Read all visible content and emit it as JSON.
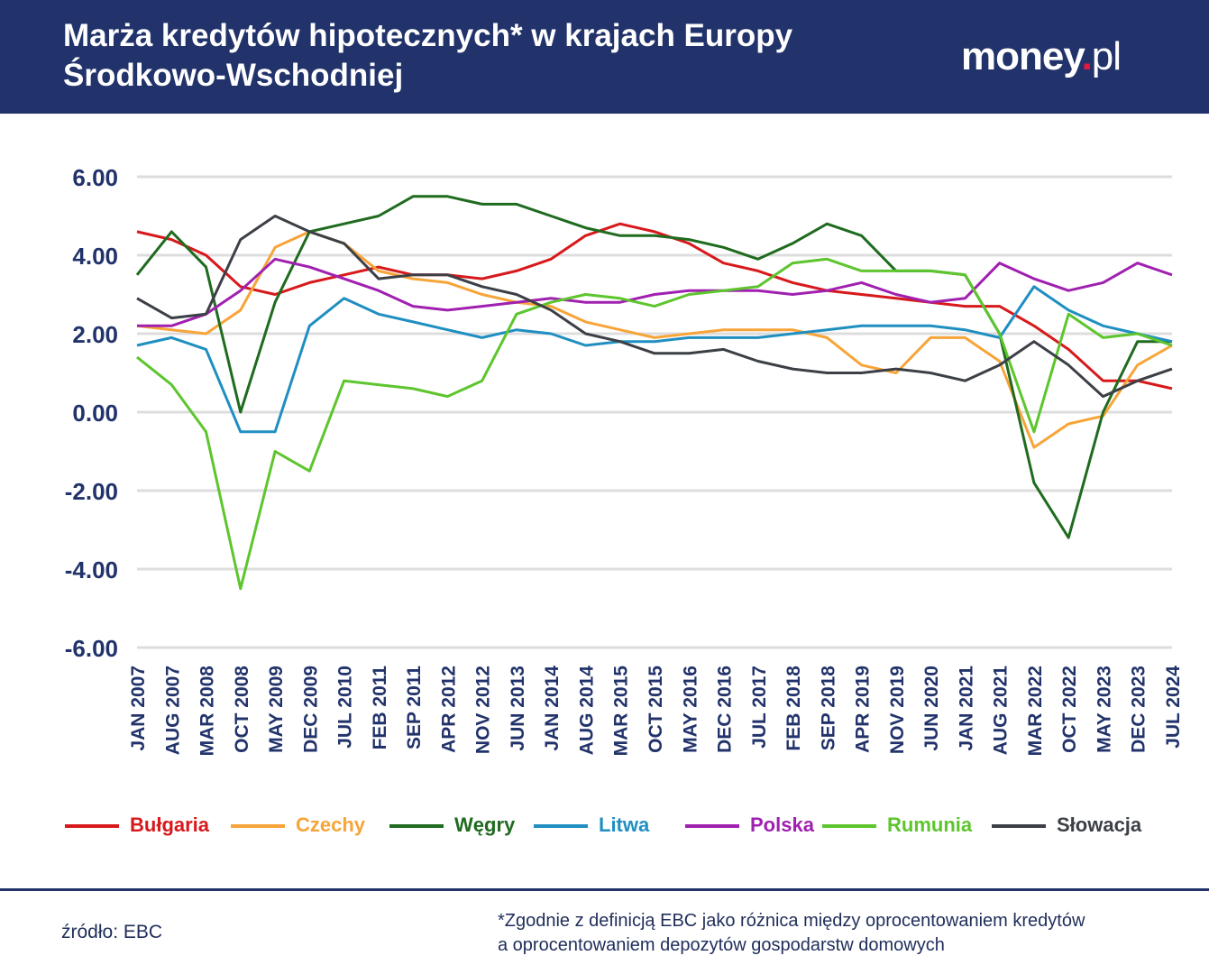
{
  "header": {
    "title": "Marża kredytów hipotecznych* w krajach Europy Środkowo-Wschodniej",
    "logo_main": "money",
    "logo_dot": ".",
    "logo_suffix": "pl"
  },
  "footer": {
    "source": "źródło: EBC",
    "footnote_line1": "*Zgodnie z definicją EBC jako różnica między oprocentowaniem kredytów",
    "footnote_line2": "a oprocentowaniem depozytów gospodarstw domowych"
  },
  "chart_data": {
    "type": "line",
    "title": "Marża kredytów hipotecznych* w krajach Europy Środkowo-Wschodniej",
    "ylim": [
      -6,
      6
    ],
    "yticks": [
      "6.00",
      "4.00",
      "2.00",
      "0.00",
      "-2.00",
      "-4.00",
      "-6.00"
    ],
    "grid": true,
    "legend_position": "bottom",
    "x_tick_labels": [
      "JAN 2007",
      "AUG 2007",
      "MAR 2008",
      "OCT 2008",
      "MAY 2009",
      "DEC 2009",
      "JUL 2010",
      "FEB 2011",
      "SEP 2011",
      "APR 2012",
      "NOV 2012",
      "JUN 2013",
      "JAN 2014",
      "AUG 2014",
      "MAR 2015",
      "OCT 2015",
      "MAY 2016",
      "DEC 2016",
      "JUL 2017",
      "FEB 2018",
      "SEP 2018",
      "APR 2019",
      "NOV 2019",
      "JUN 2020",
      "JAN 2021",
      "AUG 2021",
      "MAR 2022",
      "OCT 2022",
      "MAY 2023",
      "DEC 2023",
      "JUL 2024"
    ],
    "x_dates": [
      "2007-01",
      "2007-08",
      "2008-03",
      "2008-10",
      "2009-05",
      "2009-12",
      "2010-07",
      "2011-02",
      "2011-09",
      "2012-04",
      "2012-11",
      "2013-06",
      "2014-01",
      "2014-08",
      "2015-03",
      "2015-10",
      "2016-05",
      "2016-12",
      "2017-07",
      "2018-02",
      "2018-09",
      "2019-04",
      "2019-11",
      "2020-06",
      "2021-01",
      "2021-08",
      "2022-03",
      "2022-10",
      "2023-05",
      "2023-12",
      "2024-07"
    ],
    "series": [
      {
        "name": "Bułgaria",
        "color": "#d7191c",
        "values": [
          4.6,
          4.4,
          4.0,
          3.2,
          3.0,
          3.3,
          3.5,
          3.7,
          3.5,
          3.5,
          3.4,
          3.6,
          3.9,
          4.5,
          4.8,
          4.6,
          4.3,
          3.8,
          3.6,
          3.3,
          3.1,
          3.0,
          2.9,
          2.8,
          2.7,
          2.7,
          2.2,
          1.6,
          0.8,
          0.8,
          0.6
        ]
      },
      {
        "name": "Czechy",
        "color": "#f7a438",
        "values": [
          2.2,
          2.1,
          2.0,
          2.6,
          4.2,
          4.6,
          4.3,
          3.6,
          3.4,
          3.3,
          3.0,
          2.8,
          2.7,
          2.3,
          2.1,
          1.9,
          2.0,
          2.1,
          2.1,
          2.1,
          1.9,
          1.2,
          1.0,
          1.9,
          1.9,
          1.3,
          -0.9,
          -0.3,
          -0.1,
          1.2,
          1.7
        ]
      },
      {
        "name": "Węgry",
        "color": "#1f6b1f",
        "values": [
          3.5,
          4.6,
          3.7,
          0.0,
          2.8,
          4.6,
          4.8,
          5.0,
          5.5,
          5.5,
          5.3,
          5.3,
          5.0,
          4.7,
          4.5,
          4.5,
          4.4,
          4.2,
          3.9,
          4.3,
          4.8,
          4.5,
          3.6,
          3.6,
          3.5,
          2.0,
          -1.8,
          -3.2,
          0.0,
          1.8,
          1.8
        ]
      },
      {
        "name": "Litwa",
        "color": "#1f8fc1",
        "values": [
          1.7,
          1.9,
          1.6,
          -0.5,
          -0.5,
          2.2,
          2.9,
          2.5,
          2.3,
          2.1,
          1.9,
          2.1,
          2.0,
          1.7,
          1.8,
          1.8,
          1.9,
          1.9,
          1.9,
          2.0,
          2.1,
          2.2,
          2.2,
          2.2,
          2.1,
          1.9,
          3.2,
          2.6,
          2.2,
          2.0,
          1.8
        ]
      },
      {
        "name": "Polska",
        "color": "#a020b0",
        "values": [
          2.2,
          2.2,
          2.5,
          3.1,
          3.9,
          3.7,
          3.4,
          3.1,
          2.7,
          2.6,
          2.7,
          2.8,
          2.9,
          2.8,
          2.8,
          3.0,
          3.1,
          3.1,
          3.1,
          3.0,
          3.1,
          3.3,
          3.0,
          2.8,
          2.9,
          3.8,
          3.4,
          3.1,
          3.3,
          3.8,
          3.5
        ]
      },
      {
        "name": "Rumunia",
        "color": "#5dc52d",
        "values": [
          1.4,
          0.7,
          -0.5,
          -4.5,
          -1.0,
          -1.5,
          0.8,
          0.7,
          0.6,
          0.4,
          0.8,
          2.5,
          2.8,
          3.0,
          2.9,
          2.7,
          3.0,
          3.1,
          3.2,
          3.8,
          3.9,
          3.6,
          3.6,
          3.6,
          3.5,
          2.0,
          -0.5,
          2.5,
          1.9,
          2.0,
          1.7
        ]
      },
      {
        "name": "Słowacja",
        "color": "#3c4046",
        "values": [
          2.9,
          2.4,
          2.5,
          4.4,
          5.0,
          4.6,
          4.3,
          3.4,
          3.5,
          3.5,
          3.2,
          3.0,
          2.6,
          2.0,
          1.8,
          1.5,
          1.5,
          1.6,
          1.3,
          1.1,
          1.0,
          1.0,
          1.1,
          1.0,
          0.8,
          1.2,
          1.8,
          1.2,
          0.4,
          0.8,
          1.1
        ]
      }
    ]
  }
}
